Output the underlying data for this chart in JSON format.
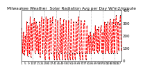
{
  "title": "Milwaukee Weather  Solar Radiation Avg per Day W/m2/minute",
  "line_color": "red",
  "bg_color": "white",
  "grid_color": "#888888",
  "x_values": [
    1,
    2,
    3,
    4,
    5,
    6,
    7,
    8,
    9,
    10,
    11,
    12,
    13,
    14,
    15,
    16,
    17,
    18,
    19,
    20,
    21,
    22,
    23,
    24,
    25,
    26,
    27,
    28,
    29,
    30,
    31,
    32,
    33,
    34,
    35,
    36,
    37,
    38,
    39,
    40,
    41,
    42,
    43,
    44,
    45,
    46,
    47,
    48,
    49,
    50,
    51,
    52,
    53,
    54,
    55,
    56,
    57,
    58,
    59,
    60,
    61,
    62,
    63,
    64,
    65,
    66,
    67,
    68,
    69,
    70,
    71,
    72,
    73,
    74,
    75,
    76,
    77,
    78,
    79,
    80,
    81,
    82,
    83,
    84,
    85,
    86,
    87,
    88,
    89,
    90,
    91,
    92,
    93,
    94,
    95,
    96,
    97,
    98,
    99,
    100,
    101,
    102,
    103,
    104,
    105,
    106,
    107,
    108,
    109,
    110,
    111,
    112,
    113,
    114,
    115,
    116,
    117,
    118,
    119,
    120
  ],
  "y_values": [
    260,
    60,
    230,
    50,
    200,
    80,
    310,
    40,
    280,
    60,
    350,
    30,
    300,
    80,
    270,
    340,
    60,
    310,
    80,
    280,
    60,
    310,
    30,
    280,
    350,
    60,
    330,
    80,
    10,
    350,
    60,
    330,
    80,
    10,
    340,
    60,
    310,
    350,
    60,
    10,
    330,
    80,
    10,
    320,
    60,
    10,
    340,
    60,
    290,
    10,
    330,
    60,
    10,
    320,
    60,
    10,
    320,
    60,
    10,
    330,
    60,
    10,
    310,
    60,
    10,
    310,
    60,
    290,
    350,
    60,
    10,
    320,
    60,
    10,
    280,
    320,
    60,
    10,
    280,
    60,
    200,
    60,
    230,
    60,
    200,
    80,
    220,
    60,
    280,
    80,
    250,
    60,
    270,
    80,
    240,
    280,
    60,
    230,
    60,
    310,
    60,
    290,
    80,
    310,
    60,
    300,
    330,
    60,
    310,
    60,
    330,
    60,
    290,
    360,
    60,
    310,
    80,
    290,
    360,
    80
  ],
  "ylim": [
    0,
    400
  ],
  "yticks": [
    0,
    100,
    200,
    300,
    400
  ],
  "ylabel_fontsize": 4.0,
  "xlabel_fontsize": 3.2,
  "title_fontsize": 4.2,
  "linewidth": 0.7,
  "linestyle": "--",
  "marker": ".",
  "markersize": 1.0,
  "grid_linestyle": ":",
  "grid_linewidth": 0.5,
  "vgrid_positions": [
    14,
    28,
    42,
    56,
    70,
    84,
    98,
    112
  ],
  "xtick_labels": [
    "1",
    "2",
    "1",
    "2",
    "3",
    "4",
    "5",
    "1",
    "2",
    "3",
    "4",
    "5",
    "1",
    "2",
    "3",
    "4",
    "5",
    "1",
    "2",
    "3",
    "4",
    "5",
    "1",
    "2",
    "3",
    "4",
    "5",
    "1",
    "2"
  ],
  "xmin": 1,
  "xmax": 120
}
